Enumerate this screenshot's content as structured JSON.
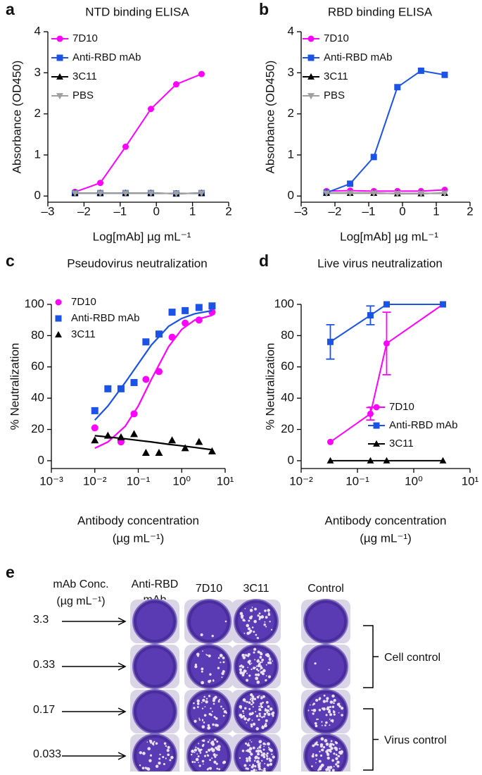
{
  "chart_data": [
    {
      "panel": "a",
      "type": "line",
      "title": "NTD binding ELISA",
      "xlabel": "Log[mAb] µg mL⁻¹",
      "ylabel": "Absorbance (OD450)",
      "x": [
        -2.25,
        -1.55,
        -0.85,
        -0.15,
        0.55,
        1.25
      ],
      "series": [
        {
          "name": "7D10",
          "color": "#ff00ff",
          "marker": "circle",
          "values": [
            0.1,
            0.32,
            1.2,
            2.12,
            2.72,
            2.97
          ]
        },
        {
          "name": "Anti-RBD mAb",
          "color": "#1a53e6",
          "marker": "square",
          "values": [
            0.07,
            0.07,
            0.07,
            0.07,
            0.06,
            0.07
          ]
        },
        {
          "name": "3C11",
          "color": "#000000",
          "marker": "triangle",
          "values": [
            0.07,
            0.07,
            0.07,
            0.07,
            0.06,
            0.07
          ]
        },
        {
          "name": "PBS",
          "color": "#a0a0a0",
          "marker": "triangle-down",
          "values": [
            0.07,
            0.07,
            0.07,
            0.07,
            0.06,
            0.07
          ]
        }
      ],
      "xlim": [
        -3,
        2
      ],
      "xticks": [
        {
          "value": -3,
          "label": "–3"
        },
        {
          "value": -2,
          "label": "–2"
        },
        {
          "value": -1,
          "label": "–1"
        },
        0,
        1,
        2
      ],
      "ylim": [
        -0.15,
        4
      ],
      "yticks": [
        0,
        1,
        2,
        3,
        4
      ],
      "legend": "upper left"
    },
    {
      "panel": "b",
      "type": "line",
      "title": "RBD binding ELISA",
      "xlabel": "Log[mAb] µg mL⁻¹",
      "ylabel": "Absorbance (OD450)",
      "x": [
        -2.25,
        -1.55,
        -0.85,
        -0.15,
        0.55,
        1.25
      ],
      "series": [
        {
          "name": "7D10",
          "color": "#ff00ff",
          "marker": "circle",
          "values": [
            0.12,
            0.13,
            0.12,
            0.12,
            0.12,
            0.15
          ]
        },
        {
          "name": "Anti-RBD mAb",
          "color": "#1a53e6",
          "marker": "square",
          "values": [
            0.08,
            0.3,
            0.95,
            2.65,
            3.05,
            2.95
          ]
        },
        {
          "name": "3C11",
          "color": "#000000",
          "marker": "triangle",
          "values": [
            0.07,
            0.07,
            0.07,
            0.06,
            0.06,
            0.07
          ]
        },
        {
          "name": "PBS",
          "color": "#a0a0a0",
          "marker": "triangle-down",
          "values": [
            0.07,
            0.07,
            0.07,
            0.06,
            0.06,
            0.07
          ]
        }
      ],
      "xlim": [
        -3,
        2
      ],
      "xticks": [
        {
          "value": -3,
          "label": "–3"
        },
        {
          "value": -2,
          "label": "–2"
        },
        {
          "value": -1,
          "label": "–1"
        },
        0,
        1,
        2
      ],
      "ylim": [
        -0.15,
        4
      ],
      "yticks": [
        0,
        1,
        2,
        3,
        4
      ],
      "legend": "upper left"
    },
    {
      "panel": "c",
      "type": "scatter",
      "title": "Pseudovirus neutralization",
      "xlabel": [
        "Antibody concentration",
        "(µg mL⁻¹)"
      ],
      "ylabel": "% Neutralization",
      "x": [
        0.01,
        0.02,
        0.04,
        0.08,
        0.15,
        0.3,
        0.6,
        1.2,
        2.5,
        5
      ],
      "fit_x": [
        0.01,
        0.02,
        0.05,
        0.1,
        0.2,
        0.5,
        1,
        2,
        5
      ],
      "series": [
        {
          "name": "7D10",
          "color": "#ff00ff",
          "marker": "circle",
          "values": [
            21,
            null,
            12,
            30,
            52,
            57,
            79,
            88,
            90,
            95
          ],
          "fit_values": [
            8,
            12,
            22,
            35,
            52,
            73,
            84,
            90,
            93
          ]
        },
        {
          "name": "Anti-RBD mAb",
          "color": "#1a53e6",
          "marker": "square",
          "values": [
            32,
            46,
            46,
            50,
            76,
            81,
            95,
            96,
            98,
            99
          ],
          "fit_values": [
            26,
            35,
            50,
            62,
            74,
            86,
            91,
            94,
            96
          ]
        },
        {
          "name": "3C11",
          "color": "#000000",
          "marker": "triangle",
          "values": [
            13,
            16,
            15,
            17,
            5,
            5,
            13,
            8,
            12,
            6
          ],
          "fit_values": [
            16,
            15.2,
            14,
            13,
            12,
            10.5,
            9.5,
            8.5,
            7
          ]
        }
      ],
      "log_x": true,
      "xlim": [
        0.001,
        10
      ],
      "xticks": [
        {
          "value": 0.001,
          "label": "10⁻³"
        },
        {
          "value": 0.01,
          "label": "10⁻²"
        },
        {
          "value": 0.1,
          "label": "10⁻¹"
        },
        {
          "value": 1,
          "label": "10⁰"
        },
        {
          "value": 10,
          "label": "10¹"
        }
      ],
      "ylim": [
        -5,
        100
      ],
      "yticks": [
        0,
        20,
        40,
        60,
        80,
        100
      ],
      "legend": "upper left"
    },
    {
      "panel": "d",
      "type": "line",
      "title": "Live virus neutralization",
      "xlabel": [
        "Antibody concentration",
        "(µg mL⁻¹)"
      ],
      "ylabel": "% Neutralization",
      "x": [
        0.033,
        0.17,
        0.33,
        3.3
      ],
      "series": [
        {
          "name": "7D10",
          "color": "#ff00ff",
          "marker": "circle",
          "values": [
            12,
            30,
            75,
            100
          ],
          "errors": [
            null,
            4,
            20,
            null
          ]
        },
        {
          "name": "Anti-RBD mAb",
          "color": "#1a53e6",
          "marker": "square",
          "values": [
            76,
            93,
            100,
            100
          ],
          "errors": [
            11,
            6,
            null,
            null
          ]
        },
        {
          "name": "3C11",
          "color": "#000000",
          "marker": "triangle",
          "values": [
            0,
            0,
            0,
            0
          ],
          "errors": [
            null,
            null,
            null,
            null
          ]
        }
      ],
      "log_x": true,
      "xlim": [
        0.01,
        10
      ],
      "xticks": [
        {
          "value": 0.01,
          "label": "10⁻²"
        },
        {
          "value": 0.1,
          "label": "10⁻¹"
        },
        {
          "value": 1,
          "label": "10⁰"
        },
        {
          "value": 10,
          "label": "10¹"
        }
      ],
      "ylim": [
        -5,
        100
      ],
      "yticks": [
        0,
        20,
        40,
        60,
        80,
        100
      ],
      "legend": "lower right"
    }
  ],
  "panel_e": {
    "panel": "e",
    "header": [
      "mAb Conc.",
      "(µg mL⁻¹)"
    ],
    "columns": [
      [
        "Anti-RBD",
        "mAb"
      ],
      [
        "7D10"
      ],
      [
        "3C11"
      ],
      [
        "Control"
      ]
    ],
    "rows": [
      "3.3",
      "0.33",
      "0.17",
      "0.033"
    ],
    "brackets": [
      "Cell control",
      "Virus control"
    ]
  }
}
